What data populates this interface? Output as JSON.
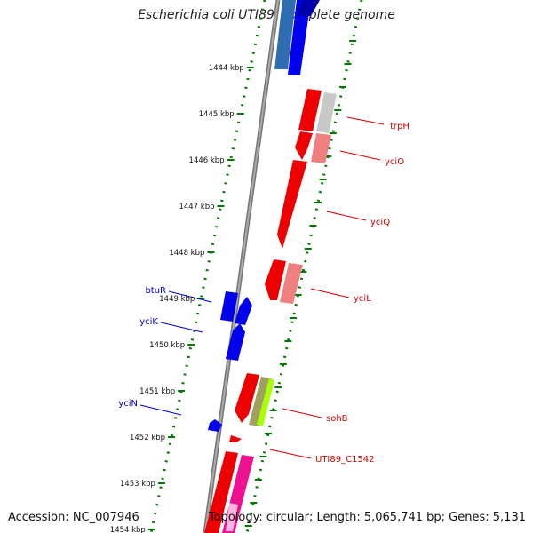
{
  "header": {
    "title": "Escherichia coli UTI89, complete genome"
  },
  "footer": {
    "accession": "Accession: NC_007946",
    "summary": "Topology: circular; Length: 5,065,741 bp; Genes: 5,131"
  },
  "ruler": {
    "ticks": [
      "1444 kbp",
      "1445 kbp",
      "1446 kbp",
      "1447 kbp",
      "1448 kbp",
      "1449 kbp",
      "1450 kbp",
      "1451 kbp",
      "1452 kbp",
      "1453 kbp",
      "1454 kbp"
    ]
  },
  "genes": [
    {
      "label": "trpH",
      "strand": "forward",
      "color": "#cc0000"
    },
    {
      "label": "yciO",
      "strand": "forward",
      "color": "#cc0000"
    },
    {
      "label": "yciQ",
      "strand": "forward",
      "color": "#cc0000"
    },
    {
      "label": "yciL",
      "strand": "forward",
      "color": "#cc0000"
    },
    {
      "label": "sohB",
      "strand": "forward",
      "color": "#cc0000"
    },
    {
      "label": "UTI89_C1542",
      "strand": "forward",
      "color": "#cc0000"
    },
    {
      "label": "btuR",
      "strand": "reverse",
      "color": "#0000cc"
    },
    {
      "label": "yciK",
      "strand": "reverse",
      "color": "#0000cc"
    },
    {
      "label": "yciN",
      "strand": "reverse",
      "color": "#0000cc"
    }
  ]
}
